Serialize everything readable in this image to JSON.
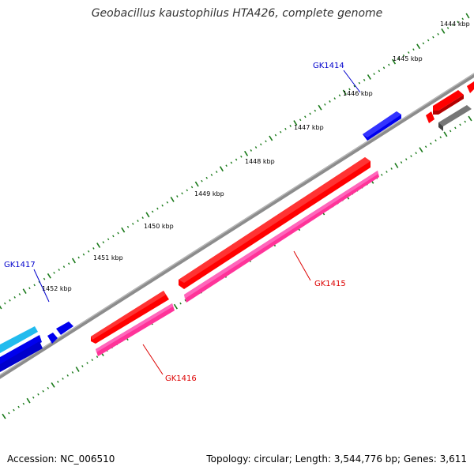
{
  "title": "Geobacillus kaustophilus HTA426, complete genome",
  "footer": {
    "accession": "Accession: NC_006510",
    "summary": "Topology: circular; Length: 3,544,776 bp; Genes: 3,611"
  },
  "scale_ticks": [
    "1444 kbp",
    "1445 kbp",
    "1446 kbp",
    "1447 kbp",
    "1448 kbp",
    "1449 kbp",
    "1450 kbp",
    "1451 kbp",
    "1452 kbp"
  ],
  "gene_labels": [
    {
      "text": "GK1414",
      "color": "#0000cc"
    },
    {
      "text": "GK1415",
      "color": "#dd0000"
    },
    {
      "text": "GK1416",
      "color": "#dd0000"
    },
    {
      "text": "GK1417",
      "color": "#0000cc"
    }
  ],
  "colors": {
    "backbone": "#8c8c8c",
    "forward_gene": "#ff0000",
    "reverse_gene": "#0000ee",
    "rna_gene": "#ff3399",
    "cyan_gene": "#22bbee",
    "gray_gene": "#666666",
    "tick": "#1a7a1a",
    "label_red": "#dd0000",
    "label_blue": "#0000cc"
  }
}
